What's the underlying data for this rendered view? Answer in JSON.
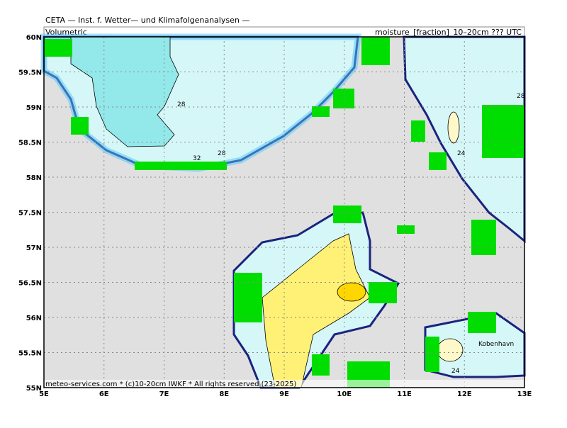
{
  "header": {
    "title": "CETA — Inst. f. Wetter— und Klimafolgenanalysen —",
    "left_label": "Volumetric",
    "right_label": "moisture_[fraction]_10–20cm ??? UTC"
  },
  "axes": {
    "x_labels": [
      "5E",
      "6E",
      "7E",
      "8E",
      "9E",
      "10E",
      "11E",
      "12E",
      "13E"
    ],
    "y_labels": [
      "55N",
      "55.5N",
      "56N",
      "56.5N",
      "57N",
      "57.5N",
      "58N",
      "58.5N",
      "59N",
      "59.5N",
      "60N"
    ]
  },
  "contour_labels": [
    "28",
    "32",
    "28",
    "24",
    "28",
    "24"
  ],
  "city": "Kobenhavn",
  "footer": "meteo-services.com * (c)10-20cm IWKF * All rights reserved (23-2025)"
}
